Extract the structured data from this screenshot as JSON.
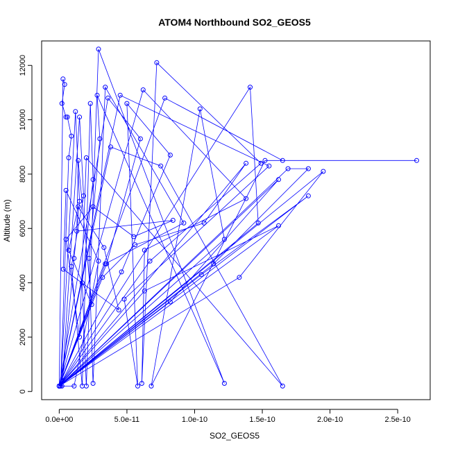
{
  "chart_data": {
    "type": "line",
    "title": "ATOM4 Northbound SO2_GEOS5",
    "xlabel": "SO2_GEOS5",
    "ylabel": "Altitude (m)",
    "xlim": [
      -1.3e-11,
      2.74e-10
    ],
    "ylim": [
      -300,
      12900
    ],
    "x_ticks": [
      {
        "value": 0,
        "label": "0.0e+00"
      },
      {
        "value": 5e-11,
        "label": "5.0e-11"
      },
      {
        "value": 1e-10,
        "label": "1.0e-10"
      },
      {
        "value": 1.5e-10,
        "label": "1.5e-10"
      },
      {
        "value": 2e-10,
        "label": "2.0e-10"
      },
      {
        "value": 2.5e-10,
        "label": "2.5e-10"
      }
    ],
    "y_ticks": [
      {
        "value": 0,
        "label": "0"
      },
      {
        "value": 2000,
        "label": "2000"
      },
      {
        "value": 4000,
        "label": "4000"
      },
      {
        "value": 6000,
        "label": "6000"
      },
      {
        "value": 8000,
        "label": "8000"
      },
      {
        "value": 10000,
        "label": "10000"
      },
      {
        "value": 12000,
        "label": "12000"
      }
    ],
    "grid": false,
    "series_color": "#0000ff",
    "series": [
      {
        "points": [
          [
            0,
            200
          ],
          [
            2.8e-12,
            11500
          ],
          [
            4e-12,
            11300
          ],
          [
            2e-12,
            10600
          ],
          [
            5e-12,
            10100
          ],
          [
            6e-12,
            10100
          ],
          [
            9e-12,
            9400
          ],
          [
            7e-12,
            8600
          ],
          [
            1e-12,
            200
          ],
          [
            1.2e-11,
            10300
          ],
          [
            1.5e-11,
            7000
          ],
          [
            1.1e-11,
            4900
          ],
          [
            2e-12,
            200
          ],
          [
            1.5e-11,
            10100
          ],
          [
            1.8e-11,
            7200
          ],
          [
            9e-12,
            4600
          ],
          [
            1.7e-11,
            200
          ],
          [
            2.3e-11,
            10600
          ],
          [
            2.5e-11,
            7800
          ],
          [
            1.7e-11,
            4000
          ],
          [
            2e-11,
            200
          ],
          [
            2.9e-11,
            12600
          ],
          [
            1.22e-10,
            300
          ],
          [
            2.8e-11,
            10900
          ],
          [
            3e-11,
            9300
          ],
          [
            2.2e-11,
            4900
          ],
          [
            2.5e-11,
            300
          ],
          [
            3.4e-11,
            11200
          ],
          [
            9.2e-11,
            6200
          ],
          [
            3.4e-11,
            4700
          ],
          [
            0,
            200
          ],
          [
            3.6e-11,
            10800
          ],
          [
            6e-11,
            9300
          ],
          [
            3.5e-11,
            4700
          ],
          [
            0,
            200
          ],
          [
            4.5e-11,
            10900
          ],
          [
            1.55e-10,
            8300
          ],
          [
            4.8e-11,
            3400
          ],
          [
            5.8e-11,
            200
          ],
          [
            5e-11,
            10600
          ],
          [
            8.2e-11,
            8700
          ],
          [
            4.6e-11,
            4400
          ],
          [
            0,
            200
          ],
          [
            6.2e-11,
            11100
          ],
          [
            1.38e-10,
            7100
          ],
          [
            6.3e-11,
            5200
          ],
          [
            6.1e-11,
            300
          ],
          [
            7.2e-11,
            12100
          ],
          [
            1.49e-10,
            8400
          ],
          [
            6.7e-11,
            4800
          ],
          [
            0,
            200
          ],
          [
            7.8e-11,
            10800
          ],
          [
            1.65e-10,
            8500
          ],
          [
            2.64e-10,
            8500
          ],
          [
            1.52e-10,
            8500
          ],
          [
            6.8e-11,
            200
          ],
          [
            1.04e-10,
            10400
          ],
          [
            1.22e-10,
            5600
          ],
          [
            0,
            200
          ],
          [
            1.41e-10,
            11200
          ],
          [
            1.47e-10,
            6200
          ],
          [
            0,
            200
          ],
          [
            1.69e-10,
            8200
          ],
          [
            1.84e-10,
            8200
          ],
          [
            1.14e-10,
            4700
          ],
          [
            0,
            200
          ],
          [
            1.95e-10,
            8100
          ],
          [
            1.33e-10,
            4200
          ],
          [
            0,
            200
          ],
          [
            1.84e-10,
            7200
          ],
          [
            1.05e-10,
            4300
          ],
          [
            0,
            200
          ],
          [
            1.62e-10,
            7800
          ],
          [
            8.2e-11,
            3300
          ],
          [
            0,
            200
          ],
          [
            1.62e-10,
            6100
          ],
          [
            6.3e-11,
            3700
          ],
          [
            0,
            200
          ],
          [
            1.38e-10,
            8400
          ],
          [
            1.07e-10,
            6200
          ],
          [
            5.6e-11,
            5400
          ],
          [
            3.2e-11,
            4200
          ],
          [
            0,
            200
          ],
          [
            3.8e-11,
            9000
          ],
          [
            7.5e-11,
            8300
          ],
          [
            1.65e-10,
            200
          ],
          [
            2e-11,
            8600
          ],
          [
            1.5e-11,
            2000
          ],
          [
            5e-12,
            5600
          ],
          [
            2.5e-11,
            6800
          ],
          [
            5.5e-11,
            5700
          ],
          [
            8.4e-11,
            6300
          ],
          [
            1.3e-11,
            5900
          ],
          [
            1.4e-11,
            8500
          ],
          [
            2.4e-11,
            3200
          ],
          [
            7e-12,
            5200
          ],
          [
            1.4e-11,
            6800
          ],
          [
            3.3e-11,
            5300
          ],
          [
            4.4e-11,
            3000
          ],
          [
            3e-12,
            4500
          ],
          [
            5e-12,
            7400
          ],
          [
            2.9e-11,
            4800
          ],
          [
            1.1e-11,
            200
          ],
          [
            0,
            200
          ]
        ]
      }
    ]
  }
}
